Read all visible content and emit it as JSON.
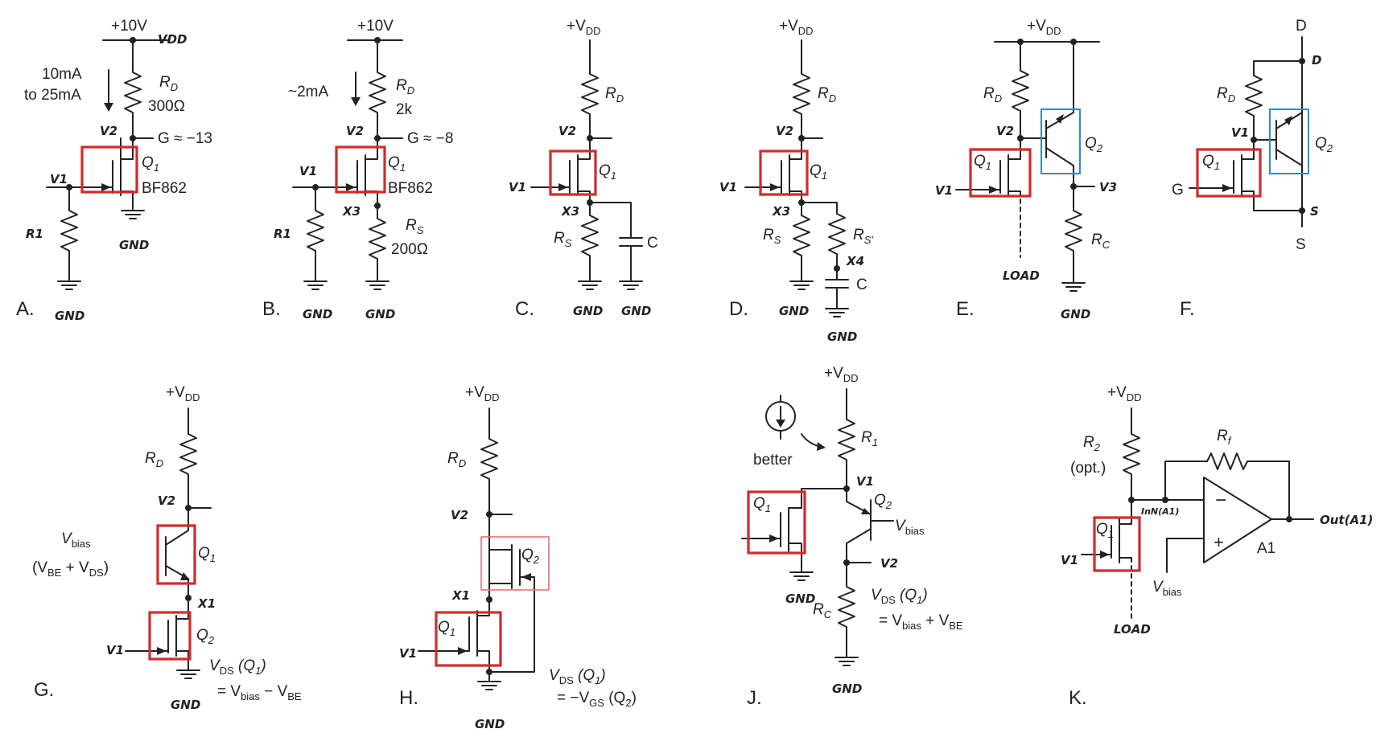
{
  "panels": {
    "A": "A.",
    "B": "B.",
    "C": "C.",
    "D": "D.",
    "E": "E.",
    "F": "F.",
    "G": "G.",
    "H": "H.",
    "J": "J.",
    "K": "K."
  },
  "a": {
    "supply": "+10V",
    "vdd": "VDD",
    "current": "10mA",
    "current2": "to 25mA",
    "rd": "R",
    "rd_sub": "D",
    "rd_val": "300Ω",
    "v2": "V2",
    "gain": "G ≈ −13",
    "q1": "Q",
    "q1_sub": "1",
    "part": "BF862",
    "v1": "V1",
    "r1": "R1",
    "gnd1": "GND",
    "gnd2": "GND"
  },
  "b": {
    "supply": "+10V",
    "current": "~2mA",
    "rd": "R",
    "rd_sub": "D",
    "rd_val": "2k",
    "v2": "V2",
    "gain": "G ≈ −8",
    "q1": "Q",
    "q1_sub": "1",
    "part": "BF862",
    "v1": "V1",
    "r1": "R1",
    "x3": "X3",
    "rs": "R",
    "rs_sub": "S",
    "rs_val": "200Ω",
    "gnd1": "GND",
    "gnd2": "GND"
  },
  "c": {
    "vdd": "+V",
    "vdd_sub": "DD",
    "rd": "R",
    "rd_sub": "D",
    "v2": "V2",
    "q1": "Q",
    "q1_sub": "1",
    "v1": "V1",
    "x3": "X3",
    "rs": "R",
    "rs_sub": "S",
    "cap": "C",
    "gnd1": "GND",
    "gnd2": "GND"
  },
  "d": {
    "vdd": "+V",
    "vdd_sub": "DD",
    "rd": "R",
    "rd_sub": "D",
    "v2": "V2",
    "q1": "Q",
    "q1_sub": "1",
    "v1": "V1",
    "x3": "X3",
    "rs": "R",
    "rs_sub": "S",
    "rs2": "R",
    "rs2_sub": "S′",
    "x4": "X4",
    "cap": "C",
    "gnd1": "GND",
    "gnd2": "GND"
  },
  "e": {
    "vdd": "+V",
    "vdd_sub": "DD",
    "rd": "R",
    "rd_sub": "D",
    "v2": "V2",
    "q1": "Q",
    "q1_sub": "1",
    "q2": "Q",
    "q2_sub": "2",
    "v1": "V1",
    "v3": "V3",
    "rc": "R",
    "rc_sub": "C",
    "load": "LOAD",
    "gnd": "GND"
  },
  "f": {
    "d_top": "D",
    "d_hand": "D",
    "rd": "R",
    "rd_sub": "D",
    "v1": "V1",
    "q1": "Q",
    "q1_sub": "1",
    "q2": "Q",
    "q2_sub": "2",
    "g": "G",
    "s_hand": "S",
    "s_bot": "S"
  },
  "g": {
    "vdd": "+V",
    "vdd_sub": "DD",
    "rd": "R",
    "rd_sub": "D",
    "v2": "V2",
    "vbias": "V",
    "vbias_sub": "bias",
    "vbe_expr": "(V",
    "vbe_sub": "BE",
    "plus": " + V",
    "vds_sub": "DS",
    "close": ")",
    "q1": "Q",
    "q1_sub": "1",
    "x1": "X1",
    "q2": "Q",
    "q2_sub": "2",
    "v1": "V1",
    "vds_a": "V",
    "vds_a_sub": "DS",
    "vds_a_tail": " (Q",
    "vds_a_q": "1",
    "vds_a_end": ")",
    "eq_a": "= V",
    "eq_a_sub": "bias",
    "eq_b": " − V",
    "eq_b_sub": "BE",
    "gnd": "GND"
  },
  "h": {
    "vdd": "+V",
    "vdd_sub": "DD",
    "rd": "R",
    "rd_sub": "D",
    "v2": "V2",
    "q2": "Q",
    "q2_sub": "2",
    "x1": "X1",
    "q1": "Q",
    "q1_sub": "1",
    "v1": "V1",
    "vds_a": "V",
    "vds_a_sub": "DS",
    "vds_a_tail": " (Q",
    "vds_a_q": "1",
    "vds_a_end": ")",
    "eq_a": "= −V",
    "eq_a_sub": "GS",
    "eq_b": " (Q",
    "eq_b_q": "2",
    "eq_b_end": ")",
    "gnd": "GND"
  },
  "j": {
    "vdd": "+V",
    "vdd_sub": "DD",
    "better": "better",
    "r1": "R",
    "r1_sub": "1",
    "v1": "V1",
    "q1": "Q",
    "q1_sub": "1",
    "q2": "Q",
    "q2_sub": "2",
    "vbias": "V",
    "vbias_sub": "bias",
    "v2": "V2",
    "rc": "R",
    "rc_sub": "C",
    "vds_a": "V",
    "vds_a_sub": "DS",
    "vds_a_tail": " (Q",
    "vds_a_q": "1",
    "vds_a_end": ")",
    "eq_a": "= V",
    "eq_a_sub": "bias",
    "eq_b": " + V",
    "eq_b_sub": "BE",
    "gnd": "GND"
  },
  "k": {
    "vdd": "+V",
    "vdd_sub": "DD",
    "r2": "R",
    "r2_sub": "2",
    "opt": "(opt.)",
    "rf": "R",
    "rf_sub": "f",
    "inn": "InN(A1)",
    "minus": "−",
    "plus": "+",
    "a1": "A1",
    "out": "Out(A1)",
    "q1": "Q",
    "q1_sub": "1",
    "v1": "V1",
    "vbias": "V",
    "vbias_sub": "bias",
    "load": "LOAD"
  },
  "colors": {
    "device_box": "#d22a2a",
    "bjt_box": "#2a8ad8",
    "ink": "#222222"
  }
}
